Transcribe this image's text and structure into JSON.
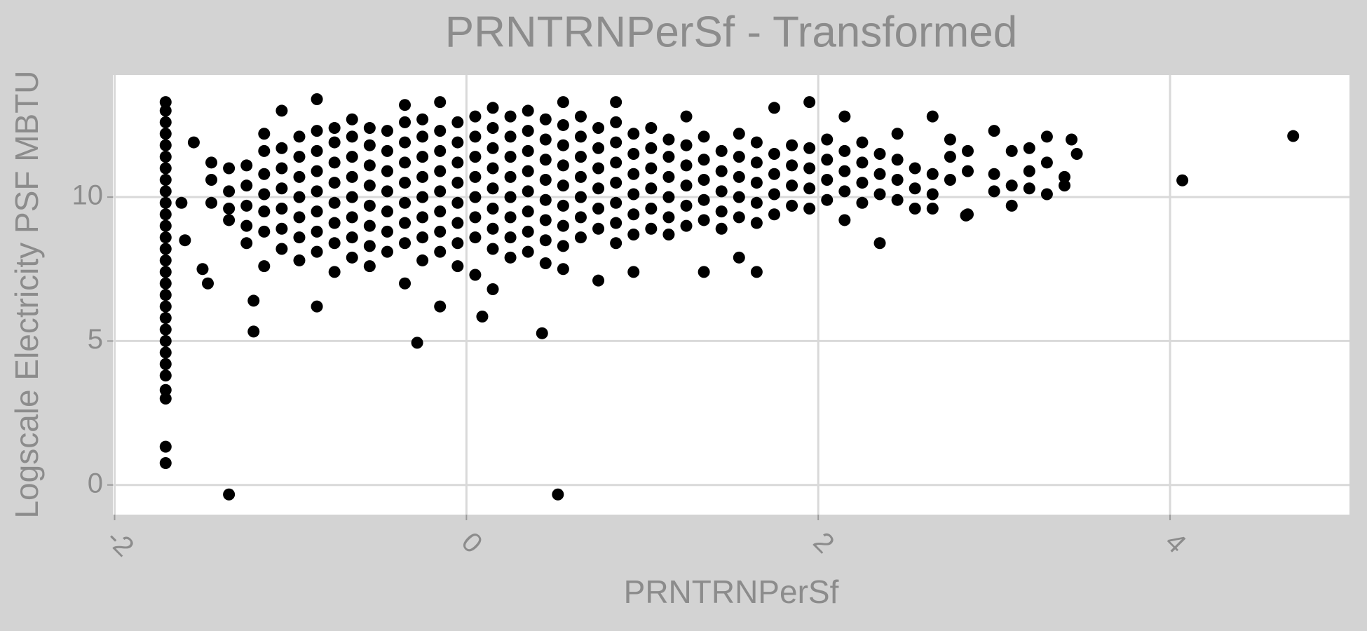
{
  "chart_data": {
    "type": "scatter",
    "title": "PRNTRNPerSf - Transformed",
    "x_label": "PRNTRNPerSf",
    "y_label": "Logscale Electricity PSF MBTU",
    "color": "#000000",
    "grid": true,
    "xlim": [
      -2.01,
      5.02
    ],
    "ylim": [
      -1.03,
      14.24
    ],
    "xticks": [
      -2,
      0,
      2,
      4
    ],
    "yticks": [
      0,
      5,
      10
    ],
    "x": [
      -1.71,
      -1.71,
      -1.71,
      -1.71,
      -1.71,
      -1.71,
      -1.71,
      -1.71,
      -1.71,
      -1.71,
      -1.71,
      -1.71,
      -1.71,
      -1.71,
      -1.71,
      -1.71,
      -1.71,
      -1.71,
      -1.71,
      -1.71,
      -1.71,
      -1.71,
      -1.71,
      -1.71,
      -1.71,
      -1.71,
      -1.71,
      -1.71,
      -1.71,
      -1.45,
      -1.45,
      -1.45,
      -1.35,
      -1.35,
      -1.35,
      -1.35,
      -1.35,
      -1.25,
      -1.25,
      -1.25,
      -1.25,
      -1.25,
      -1.15,
      -1.15,
      -1.15,
      -1.15,
      -1.15,
      -1.15,
      -1.15,
      -1.05,
      -1.05,
      -1.05,
      -1.05,
      -1.05,
      -1.05,
      -1.05,
      -0.95,
      -0.95,
      -0.95,
      -0.95,
      -0.95,
      -0.95,
      -0.95,
      -0.85,
      -0.85,
      -0.85,
      -0.85,
      -0.85,
      -0.85,
      -0.85,
      -0.85,
      -0.85,
      -0.75,
      -0.75,
      -0.75,
      -0.75,
      -0.75,
      -0.75,
      -0.75,
      -0.75,
      -0.65,
      -0.65,
      -0.65,
      -0.65,
      -0.65,
      -0.65,
      -0.65,
      -0.65,
      -0.55,
      -0.55,
      -0.55,
      -0.55,
      -0.55,
      -0.55,
      -0.55,
      -0.55,
      -0.45,
      -0.45,
      -0.45,
      -0.45,
      -0.45,
      -0.45,
      -0.45,
      -0.35,
      -0.35,
      -0.35,
      -0.35,
      -0.35,
      -0.35,
      -0.35,
      -0.35,
      -0.35,
      -0.25,
      -0.25,
      -0.25,
      -0.25,
      -0.25,
      -0.25,
      -0.25,
      -0.25,
      -0.15,
      -0.15,
      -0.15,
      -0.15,
      -0.15,
      -0.15,
      -0.15,
      -0.15,
      -0.15,
      -0.05,
      -0.05,
      -0.05,
      -0.05,
      -0.05,
      -0.05,
      -0.05,
      -0.05,
      0.05,
      0.05,
      0.05,
      0.05,
      0.05,
      0.05,
      0.05,
      0.05,
      0.15,
      0.15,
      0.15,
      0.15,
      0.15,
      0.15,
      0.15,
      0.15,
      0.15,
      0.25,
      0.25,
      0.25,
      0.25,
      0.25,
      0.25,
      0.25,
      0.25,
      0.35,
      0.35,
      0.35,
      0.35,
      0.35,
      0.35,
      0.35,
      0.35,
      0.45,
      0.45,
      0.45,
      0.45,
      0.45,
      0.45,
      0.45,
      0.45,
      0.55,
      0.55,
      0.55,
      0.55,
      0.55,
      0.55,
      0.55,
      0.55,
      0.55,
      0.65,
      0.65,
      0.65,
      0.65,
      0.65,
      0.65,
      0.65,
      0.75,
      0.75,
      0.75,
      0.75,
      0.75,
      0.75,
      0.75,
      0.85,
      0.85,
      0.85,
      0.85,
      0.85,
      0.85,
      0.85,
      0.85,
      0.95,
      0.95,
      0.95,
      0.95,
      0.95,
      0.95,
      0.95,
      1.05,
      1.05,
      1.05,
      1.05,
      1.05,
      1.05,
      1.15,
      1.15,
      1.15,
      1.15,
      1.15,
      1.15,
      1.25,
      1.25,
      1.25,
      1.25,
      1.25,
      1.25,
      1.35,
      1.35,
      1.35,
      1.35,
      1.35,
      1.35,
      1.45,
      1.45,
      1.45,
      1.45,
      1.45,
      1.55,
      1.55,
      1.55,
      1.55,
      1.55,
      1.55,
      1.65,
      1.65,
      1.65,
      1.65,
      1.65,
      1.65,
      1.75,
      1.75,
      1.75,
      1.75,
      1.75,
      1.85,
      1.85,
      1.85,
      1.85,
      1.95,
      1.95,
      1.95,
      1.95,
      1.95,
      2.05,
      2.05,
      2.05,
      2.05,
      2.15,
      2.15,
      2.15,
      2.15,
      2.15,
      2.25,
      2.25,
      2.25,
      2.25,
      2.35,
      2.35,
      2.35,
      2.35,
      2.45,
      2.45,
      2.45,
      2.45,
      2.55,
      2.55,
      2.55,
      2.65,
      2.65,
      2.65,
      2.65,
      2.75,
      2.75,
      2.75,
      2.85,
      2.85,
      2.85,
      3.0,
      3.0,
      3.0,
      3.1,
      3.1,
      3.1,
      3.2,
      3.2,
      3.2,
      3.3,
      3.3,
      3.3,
      3.4,
      3.4,
      3.47,
      3.44,
      4.07,
      4.7,
      0.52,
      0.43,
      -0.28,
      0.09,
      -1.21,
      -1.21,
      -1.55,
      -1.62,
      -1.5,
      -1.47,
      -1.6,
      2.84
    ],
    "values": [
      0.76,
      1.33,
      3.0,
      3.3,
      3.8,
      4.2,
      4.6,
      5.0,
      5.4,
      5.8,
      6.2,
      6.6,
      7.0,
      7.4,
      7.8,
      8.2,
      8.6,
      9.0,
      9.4,
      9.8,
      10.2,
      10.6,
      11.0,
      11.4,
      11.8,
      12.2,
      12.6,
      13.0,
      13.3,
      9.8,
      10.6,
      11.2,
      9.2,
      10.2,
      11.0,
      9.6,
      -0.33,
      8.4,
      9.0,
      9.7,
      10.4,
      11.1,
      7.6,
      8.8,
      9.5,
      10.1,
      10.8,
      11.6,
      12.2,
      8.2,
      8.9,
      9.6,
      10.3,
      11.0,
      11.7,
      13.0,
      7.8,
      8.6,
      9.3,
      10.0,
      10.7,
      11.4,
      12.1,
      6.2,
      8.1,
      8.8,
      9.5,
      10.2,
      10.9,
      11.6,
      12.3,
      13.4,
      7.4,
      8.4,
      9.1,
      9.8,
      10.5,
      11.2,
      11.9,
      12.4,
      7.9,
      8.6,
      9.3,
      10.0,
      10.7,
      11.4,
      12.1,
      12.7,
      7.6,
      8.3,
      9.0,
      9.7,
      10.4,
      11.1,
      11.8,
      12.4,
      8.1,
      8.8,
      9.5,
      10.2,
      10.9,
      11.6,
      12.3,
      7.0,
      8.4,
      9.1,
      9.8,
      10.5,
      11.2,
      11.9,
      12.6,
      13.2,
      7.8,
      8.6,
      9.3,
      10.0,
      10.7,
      11.4,
      12.1,
      12.7,
      8.1,
      8.8,
      9.5,
      10.2,
      10.9,
      11.6,
      12.3,
      13.3,
      6.2,
      7.6,
      8.4,
      9.1,
      9.8,
      10.5,
      11.2,
      11.9,
      12.6,
      7.3,
      8.6,
      9.3,
      10.0,
      10.7,
      11.4,
      12.1,
      12.8,
      8.2,
      8.9,
      9.6,
      10.3,
      11.0,
      11.7,
      12.4,
      13.1,
      6.8,
      7.9,
      8.6,
      9.3,
      10.0,
      10.7,
      11.4,
      12.1,
      12.8,
      8.1,
      8.8,
      9.5,
      10.2,
      10.9,
      11.6,
      12.3,
      13.0,
      7.7,
      8.5,
      9.2,
      9.9,
      10.6,
      11.3,
      12.0,
      12.7,
      8.3,
      9.0,
      9.7,
      10.4,
      11.1,
      11.8,
      12.5,
      13.3,
      7.5,
      8.6,
      9.3,
      10.0,
      10.7,
      11.4,
      12.1,
      12.8,
      7.1,
      8.9,
      9.6,
      10.3,
      11.0,
      11.7,
      12.4,
      8.4,
      9.1,
      9.8,
      10.5,
      11.2,
      11.9,
      12.6,
      13.3,
      7.4,
      8.7,
      9.4,
      10.1,
      10.8,
      11.5,
      12.2,
      8.9,
      9.6,
      10.3,
      11.0,
      11.7,
      12.4,
      8.7,
      9.3,
      10.0,
      10.7,
      11.4,
      12.0,
      9.0,
      9.7,
      10.4,
      11.1,
      11.8,
      12.8,
      7.4,
      9.2,
      9.9,
      10.6,
      11.3,
      12.1,
      8.9,
      9.5,
      10.2,
      10.9,
      11.6,
      9.3,
      10.0,
      10.7,
      11.4,
      12.2,
      7.9,
      7.4,
      9.1,
      9.8,
      10.5,
      11.2,
      11.9,
      9.4,
      10.1,
      10.8,
      11.5,
      13.1,
      9.7,
      10.4,
      11.1,
      11.8,
      9.6,
      10.3,
      11.0,
      11.7,
      13.3,
      9.9,
      10.6,
      11.3,
      12.0,
      9.2,
      10.2,
      10.9,
      11.6,
      12.8,
      9.8,
      10.5,
      11.2,
      11.9,
      8.4,
      10.1,
      10.8,
      11.5,
      9.9,
      10.6,
      11.3,
      12.2,
      10.3,
      11.0,
      9.6,
      10.1,
      10.8,
      12.8,
      9.6,
      10.6,
      11.4,
      12.0,
      9.4,
      10.9,
      11.6,
      10.2,
      10.8,
      12.3,
      9.7,
      10.4,
      11.6,
      10.3,
      10.9,
      11.7,
      10.1,
      11.2,
      12.1,
      10.4,
      10.7,
      11.5,
      12.0,
      10.58,
      12.12,
      -0.33,
      5.27,
      4.94,
      5.85,
      5.33,
      6.4,
      11.9,
      9.8,
      7.5,
      7.0,
      8.5,
      9.36
    ]
  }
}
